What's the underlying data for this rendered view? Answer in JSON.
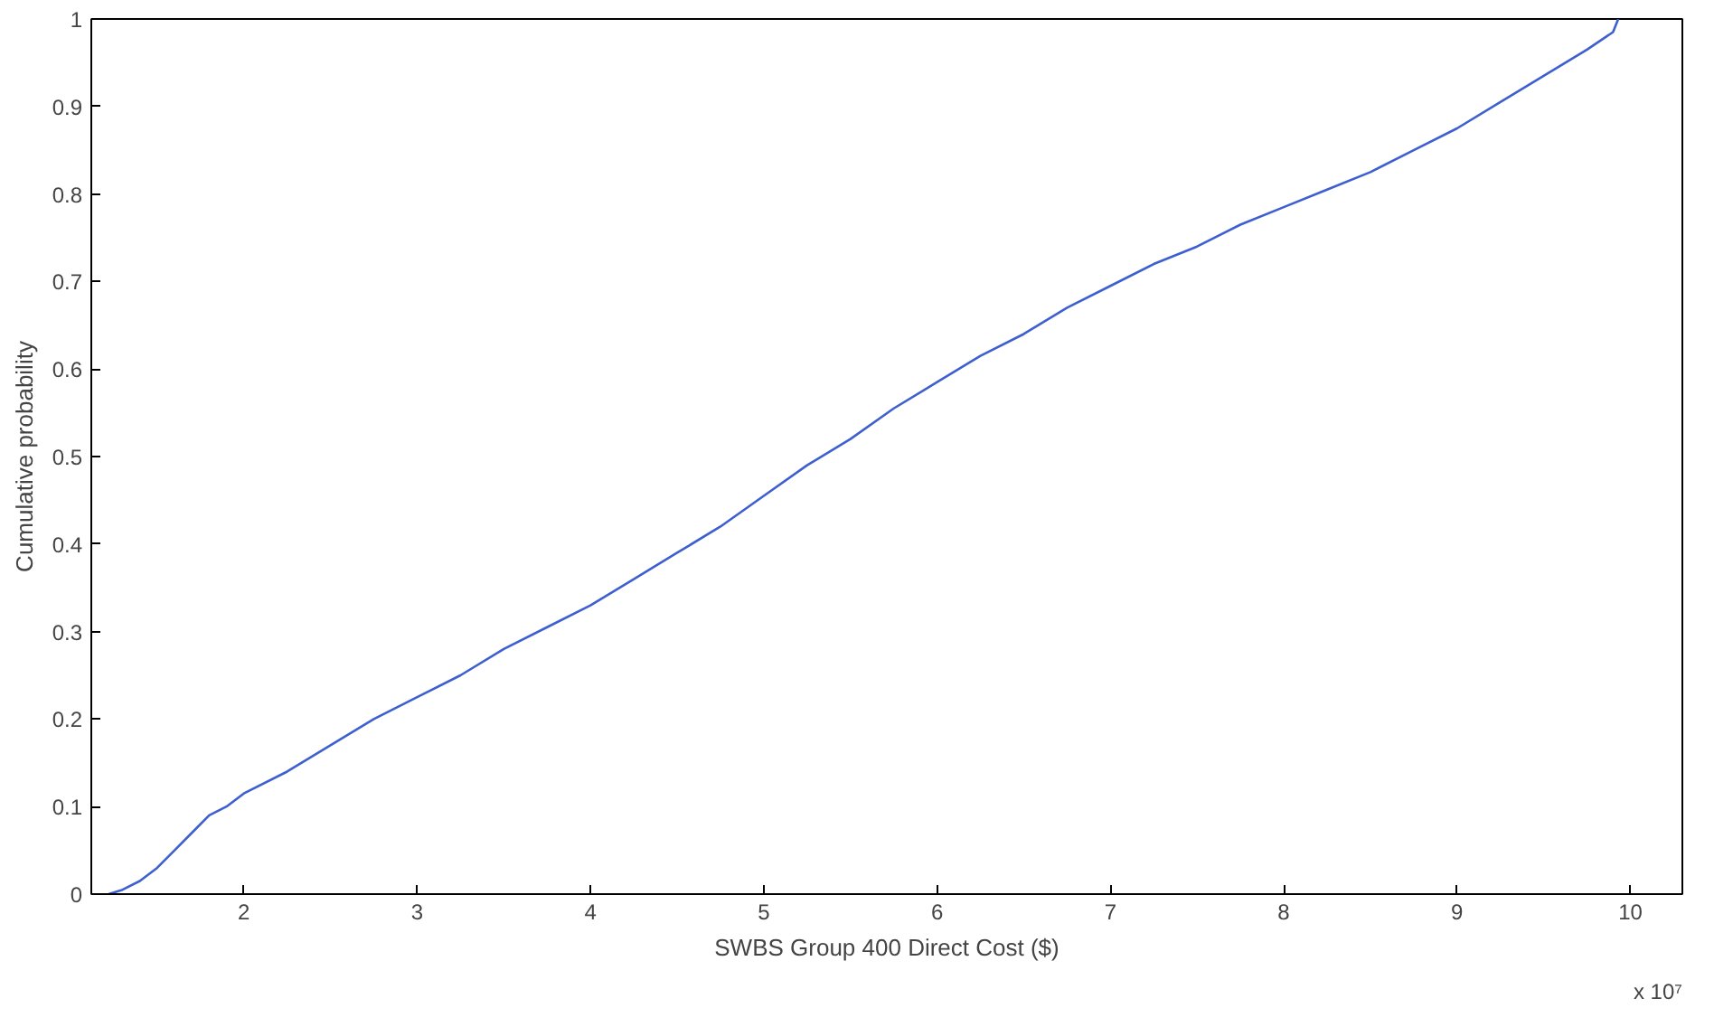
{
  "chart_data": {
    "type": "line",
    "xlabel": "SWBS Group 400 Direct Cost ($)",
    "ylabel": "Cumulative probability",
    "annotations": [
      "x 10⁷"
    ],
    "xlim": [
      1.12,
      10.3
    ],
    "xticks": [
      2,
      3,
      4,
      5,
      6,
      7,
      8,
      9,
      10
    ],
    "ylim": [
      0,
      1
    ],
    "yticks": [
      0,
      0.1,
      0.2,
      0.3,
      0.4,
      0.5,
      0.6,
      0.7,
      0.8,
      0.9,
      1
    ],
    "grid": false,
    "series": [
      {
        "color": "#3d5fcf",
        "x": [
          1.22,
          1.3,
          1.4,
          1.5,
          1.6,
          1.7,
          1.8,
          1.9,
          2.0,
          2.25,
          2.5,
          2.75,
          3.0,
          3.25,
          3.5,
          3.75,
          4.0,
          4.25,
          4.5,
          4.75,
          5.0,
          5.25,
          5.5,
          5.75,
          6.0,
          6.25,
          6.5,
          6.75,
          7.0,
          7.25,
          7.5,
          7.75,
          8.0,
          8.25,
          8.5,
          8.75,
          9.0,
          9.25,
          9.5,
          9.75,
          9.9,
          9.93
        ],
        "values": [
          0,
          0.005,
          0.015,
          0.03,
          0.05,
          0.07,
          0.09,
          0.1,
          0.115,
          0.14,
          0.17,
          0.2,
          0.225,
          0.25,
          0.28,
          0.305,
          0.33,
          0.36,
          0.39,
          0.42,
          0.455,
          0.49,
          0.52,
          0.555,
          0.585,
          0.615,
          0.64,
          0.67,
          0.695,
          0.72,
          0.74,
          0.765,
          0.785,
          0.805,
          0.825,
          0.85,
          0.875,
          0.905,
          0.935,
          0.965,
          0.985,
          1.0
        ]
      }
    ]
  }
}
